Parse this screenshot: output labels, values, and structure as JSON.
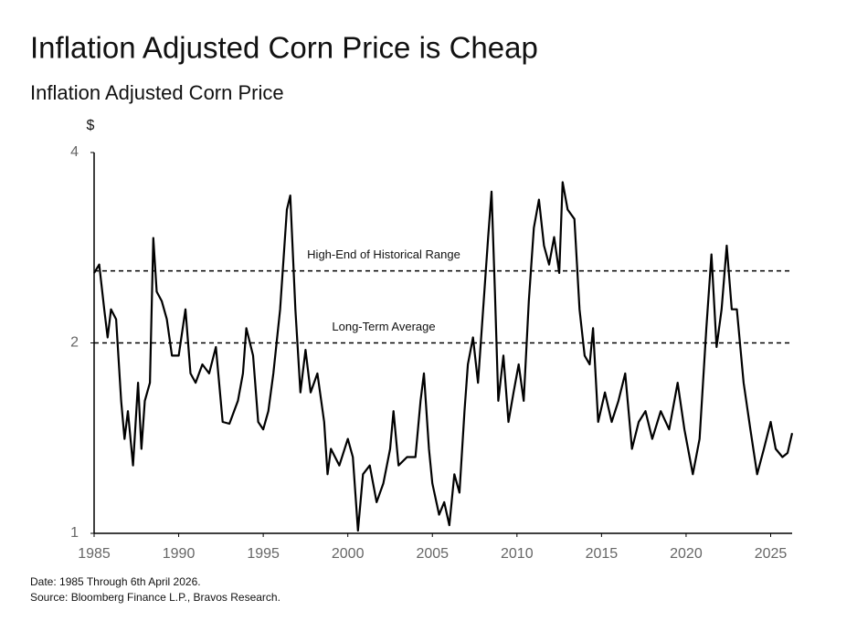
{
  "chart_data": {
    "type": "line",
    "title": "Inflation Adjusted Corn Price is Cheap",
    "subtitle": "Inflation Adjusted Corn Price",
    "y_unit": "$",
    "notes": [
      "Date: 1985 Through 6th April 2026.",
      "Source: Bloomberg Finance L.P., Bravos Research."
    ],
    "log_y": true,
    "color": "#000000",
    "xlim": [
      1985,
      2026.27
    ],
    "xticks": [
      1985,
      1990,
      1995,
      2000,
      2005,
      2010,
      2015,
      2020,
      2025
    ],
    "ylim": [
      1,
      4
    ],
    "yticks": [
      1,
      2,
      4
    ],
    "reference_lines": [
      {
        "value": 2.6,
        "label": "High-End of Historical Range"
      },
      {
        "value": 2,
        "label": "Long-Term Average"
      }
    ],
    "x": [
      1985.0,
      1985.3,
      1985.6,
      1985.8,
      1986.0,
      1986.3,
      1986.6,
      1986.8,
      1987.0,
      1987.3,
      1987.6,
      1987.8,
      1988.0,
      1988.3,
      1988.5,
      1988.7,
      1989.0,
      1989.3,
      1989.6,
      1990.0,
      1990.4,
      1990.7,
      1991.0,
      1991.4,
      1991.8,
      1992.2,
      1992.6,
      1993.0,
      1993.5,
      1993.8,
      1994.0,
      1994.4,
      1994.7,
      1995.0,
      1995.3,
      1995.6,
      1996.0,
      1996.4,
      1996.6,
      1996.9,
      1997.2,
      1997.5,
      1997.8,
      1998.2,
      1998.6,
      1998.8,
      1999.0,
      1999.5,
      2000.0,
      2000.3,
      2000.6,
      2000.9,
      2001.3,
      2001.7,
      2002.1,
      2002.5,
      2002.7,
      2003.0,
      2003.5,
      2004.0,
      2004.3,
      2004.5,
      2004.8,
      2005.0,
      2005.4,
      2005.7,
      2006.0,
      2006.3,
      2006.6,
      2006.9,
      2007.1,
      2007.4,
      2007.7,
      2008.0,
      2008.3,
      2008.5,
      2008.7,
      2008.9,
      2009.2,
      2009.5,
      2009.8,
      2010.1,
      2010.4,
      2010.7,
      2011.0,
      2011.3,
      2011.6,
      2011.9,
      2012.2,
      2012.5,
      2012.7,
      2013.0,
      2013.4,
      2013.7,
      2014.0,
      2014.3,
      2014.5,
      2014.8,
      2015.2,
      2015.6,
      2016.0,
      2016.4,
      2016.8,
      2017.2,
      2017.6,
      2018.0,
      2018.5,
      2019.0,
      2019.5,
      2019.9,
      2020.4,
      2020.8,
      2021.2,
      2021.5,
      2021.8,
      2022.1,
      2022.4,
      2022.7,
      2023.0,
      2023.4,
      2023.8,
      2024.2,
      2024.6,
      2025.0,
      2025.3,
      2025.7,
      2026.0,
      2026.27
    ],
    "values": [
      2.58,
      2.66,
      2.26,
      2.04,
      2.26,
      2.18,
      1.62,
      1.41,
      1.56,
      1.28,
      1.73,
      1.36,
      1.62,
      1.73,
      2.93,
      2.41,
      2.33,
      2.18,
      1.91,
      1.91,
      2.26,
      1.79,
      1.73,
      1.85,
      1.79,
      1.97,
      1.5,
      1.49,
      1.62,
      1.79,
      2.11,
      1.91,
      1.5,
      1.46,
      1.56,
      1.79,
      2.26,
      3.25,
      3.42,
      2.26,
      1.67,
      1.95,
      1.67,
      1.79,
      1.5,
      1.24,
      1.36,
      1.28,
      1.41,
      1.32,
      1.01,
      1.24,
      1.28,
      1.12,
      1.2,
      1.36,
      1.56,
      1.28,
      1.32,
      1.32,
      1.62,
      1.79,
      1.36,
      1.2,
      1.07,
      1.12,
      1.03,
      1.24,
      1.16,
      1.56,
      1.85,
      2.04,
      1.73,
      2.26,
      2.94,
      3.47,
      2.41,
      1.62,
      1.91,
      1.5,
      1.67,
      1.85,
      1.62,
      2.33,
      3.04,
      3.37,
      2.85,
      2.66,
      2.94,
      2.58,
      3.59,
      3.25,
      3.14,
      2.26,
      1.91,
      1.85,
      2.11,
      1.5,
      1.67,
      1.5,
      1.62,
      1.79,
      1.36,
      1.5,
      1.56,
      1.41,
      1.56,
      1.46,
      1.73,
      1.46,
      1.24,
      1.41,
      2.11,
      2.76,
      1.97,
      2.26,
      2.85,
      2.26,
      2.26,
      1.73,
      1.46,
      1.24,
      1.36,
      1.5,
      1.36,
      1.32,
      1.34,
      1.44
    ]
  }
}
